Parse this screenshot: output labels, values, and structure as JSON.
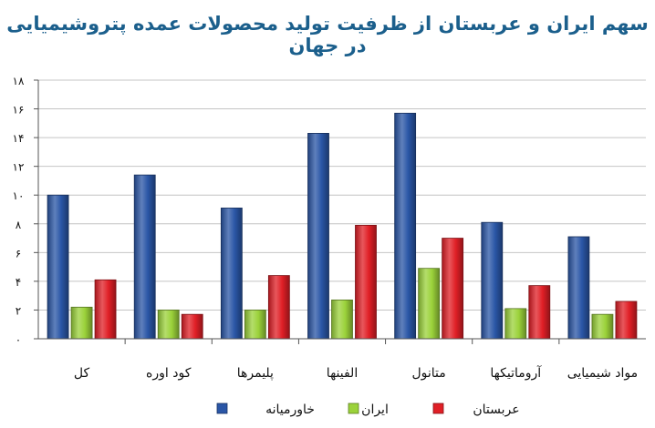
{
  "chart_data": {
    "type": "bar",
    "title": "سهم ایران و عربستان از ظرفیت تولید محصولات عمده پتروشیمیایی در جهان",
    "categories": [
      "کل",
      "کود اوره",
      "پلیمرها",
      "الفینها",
      "متانول",
      "آروماتیکها",
      "مواد شیمیایی"
    ],
    "y_tick_labels": [
      "۰",
      "۲",
      "۴",
      "۶",
      "۸",
      "۱۰",
      "۱۲",
      "۱۴",
      "۱۶",
      "۱۸"
    ],
    "ylim": [
      0,
      18
    ],
    "grid": true,
    "legend_position": "bottom",
    "series": [
      {
        "name": "خاورمیانه",
        "color": "#2a56a6",
        "values": [
          10.0,
          11.4,
          9.1,
          14.3,
          15.7,
          8.1,
          7.1
        ]
      },
      {
        "name": "ایران",
        "color": "#9bd23a",
        "values": [
          2.2,
          2.0,
          2.0,
          2.7,
          4.9,
          2.1,
          1.7
        ]
      },
      {
        "name": "عربستان",
        "color": "#e01f26",
        "values": [
          4.1,
          1.7,
          4.4,
          7.9,
          7.0,
          3.7,
          2.6
        ]
      }
    ]
  }
}
